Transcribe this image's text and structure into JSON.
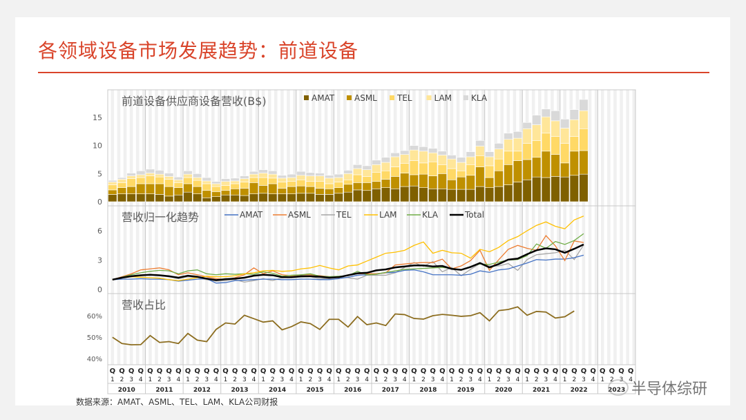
{
  "slide": {
    "title": "各领域设备市场发展趋势：前道设备",
    "source": "数据来源：AMAT、ASML、TEL、LAM、KLA公司财报",
    "watermark": "半导体综研"
  },
  "axis": {
    "quarter_prefix": "Q",
    "quarters": [
      "1",
      "2",
      "3",
      "4"
    ],
    "years": [
      "2010",
      "2011",
      "2012",
      "2013",
      "2014",
      "2015",
      "2016",
      "2017",
      "2018",
      "2019",
      "2020",
      "2021",
      "2022",
      "2023"
    ]
  },
  "chart_data": [
    {
      "type": "bar",
      "stacked": true,
      "title": "前道设备供应商设备营收(B$)",
      "ylim": [
        0,
        19
      ],
      "yticks": [
        "0",
        "5",
        "10",
        "15"
      ],
      "legend": "top",
      "x_range": "2010Q1-2023Q4",
      "series": [
        {
          "name": "AMAT",
          "color": "#7f6000",
          "values": [
            1.3,
            1.4,
            1.4,
            1.4,
            1.4,
            1.3,
            1.0,
            1.2,
            1.7,
            1.4,
            0.7,
            0.9,
            1.2,
            1.2,
            1.1,
            1.4,
            1.5,
            1.4,
            1.4,
            1.4,
            1.5,
            1.5,
            1.3,
            1.3,
            1.5,
            1.7,
            2.1,
            2.0,
            2.3,
            2.5,
            2.3,
            2.7,
            2.8,
            2.5,
            2.3,
            2.3,
            2.2,
            2.2,
            2.2,
            2.7,
            2.5,
            2.7,
            3.0,
            3.5,
            3.9,
            4.4,
            4.3,
            4.5,
            4.4,
            4.7,
            4.9
          ]
        },
        {
          "name": "ASML",
          "color": "#bf9000",
          "values": [
            0.8,
            1.1,
            1.3,
            1.8,
            1.8,
            1.9,
            1.7,
            1.3,
            1.5,
            1.3,
            1.3,
            0.9,
            0.8,
            1.1,
            1.3,
            2.0,
            1.4,
            1.8,
            1.0,
            1.3,
            1.3,
            1.2,
            1.1,
            1.0,
            1.0,
            1.4,
            1.3,
            1.4,
            1.3,
            1.5,
            2.2,
            2.4,
            2.0,
            2.4,
            2.3,
            2.7,
            1.7,
            2.2,
            2.5,
            3.5,
            1.8,
            2.8,
            3.6,
            3.8,
            3.6,
            3.5,
            4.7,
            3.9,
            2.5,
            4.3,
            4.2
          ]
        },
        {
          "name": "TEL",
          "color": "#ffd966",
          "values": [
            0.9,
            0.9,
            1.4,
            1.1,
            1.4,
            1.2,
            1.3,
            0.9,
            1.1,
            1.1,
            1.2,
            0.9,
            0.9,
            0.9,
            1.1,
            0.9,
            1.4,
            1.0,
            1.1,
            0.9,
            1.1,
            0.9,
            1.2,
            0.9,
            1.0,
            0.8,
            1.4,
            1.1,
            1.6,
            1.5,
            1.7,
            1.7,
            2.5,
            2.0,
            2.5,
            1.6,
            2.0,
            1.1,
            1.9,
            2.0,
            2.1,
            2.1,
            2.4,
            1.7,
            2.9,
            3.0,
            3.2,
            3.2,
            3.5,
            2.6,
            3.9
          ]
        },
        {
          "name": "LAM",
          "color": "#ffe699",
          "values": [
            0.5,
            0.6,
            0.5,
            0.5,
            0.5,
            0.5,
            0.5,
            0.5,
            0.6,
            0.5,
            0.5,
            0.5,
            0.7,
            0.5,
            0.6,
            0.6,
            0.8,
            0.7,
            0.7,
            0.7,
            0.8,
            1.0,
            1.0,
            1.0,
            0.8,
            1.1,
            1.1,
            1.2,
            1.4,
            1.5,
            1.8,
            1.6,
            1.9,
            2.1,
            1.6,
            1.7,
            1.7,
            1.5,
            1.4,
            1.7,
            1.6,
            1.8,
            2.1,
            2.3,
            2.6,
            2.8,
            2.9,
            2.8,
            2.7,
            3.0,
            3.2
          ]
        },
        {
          "name": "KLA",
          "color": "#d9d9d9",
          "values": [
            0.3,
            0.3,
            0.5,
            0.7,
            0.7,
            0.7,
            0.6,
            0.5,
            0.6,
            0.7,
            0.6,
            0.4,
            0.5,
            0.5,
            0.5,
            0.5,
            0.6,
            0.6,
            0.5,
            0.6,
            0.7,
            0.6,
            0.5,
            0.5,
            0.6,
            0.6,
            0.7,
            0.7,
            0.8,
            0.9,
            0.7,
            0.7,
            0.8,
            0.8,
            0.8,
            0.7,
            0.7,
            0.9,
            0.9,
            1.0,
            0.9,
            1.0,
            1.1,
            1.2,
            1.1,
            1.7,
            1.4,
            1.8,
            1.6,
            1.8,
            2.0
          ]
        }
      ]
    },
    {
      "type": "line",
      "title": "营收归一化趋势",
      "ylim": [
        0,
        8.6
      ],
      "yticks": [
        "0",
        "3",
        "6"
      ],
      "legend": "top",
      "series": [
        {
          "name": "AMAT",
          "color": "#4472c4",
          "values": [
            1.0,
            1.05,
            1.05,
            1.1,
            1.05,
            1.05,
            1.0,
            0.85,
            0.95,
            1.05,
            1.1,
            0.65,
            0.7,
            0.9,
            0.95,
            1.0,
            1.05,
            1.05,
            1.0,
            1.0,
            1.05,
            1.05,
            1.0,
            1.0,
            1.1,
            1.25,
            1.45,
            1.5,
            1.6,
            1.7,
            1.75,
            1.95,
            2.0,
            1.8,
            1.5,
            1.5,
            1.5,
            1.45,
            1.55,
            1.9,
            1.75,
            2.0,
            2.1,
            2.4,
            2.7,
            3.05,
            3.0,
            3.1,
            3.1,
            3.25,
            3.5
          ]
        },
        {
          "name": "ASML",
          "color": "#ed7d31",
          "values": [
            1.0,
            1.3,
            1.6,
            2.0,
            2.1,
            2.2,
            2.0,
            1.5,
            1.7,
            1.5,
            1.3,
            1.1,
            1.0,
            1.2,
            1.5,
            2.2,
            1.6,
            1.9,
            1.5,
            1.4,
            1.5,
            1.5,
            1.4,
            1.3,
            1.2,
            1.5,
            1.6,
            1.6,
            1.6,
            1.7,
            2.5,
            2.6,
            2.7,
            2.75,
            2.75,
            3.1,
            2.1,
            2.4,
            2.95,
            4.0,
            1.95,
            3.05,
            4.1,
            4.5,
            4.2,
            4.0,
            5.5,
            4.45,
            2.95,
            4.95,
            4.8
          ]
        },
        {
          "name": "TEL",
          "color": "#a5a5a5",
          "values": [
            1.0,
            1.2,
            1.35,
            1.4,
            1.5,
            1.4,
            1.3,
            1.1,
            1.3,
            1.2,
            1.0,
            0.85,
            0.9,
            1.0,
            0.75,
            0.9,
            1.1,
            0.9,
            1.2,
            1.2,
            1.25,
            1.3,
            1.1,
            1.1,
            1.25,
            1.2,
            1.05,
            1.45,
            1.45,
            1.45,
            1.7,
            2.25,
            2.75,
            2.35,
            2.85,
            1.8,
            2.25,
            1.4,
            2.05,
            2.65,
            2.4,
            2.4,
            2.65,
            1.95,
            3.05,
            3.55,
            3.65,
            3.75,
            4.0,
            3.05,
            4.55
          ]
        },
        {
          "name": "LAM",
          "color": "#ffc000",
          "values": [
            1.0,
            1.2,
            1.3,
            1.25,
            1.2,
            1.15,
            1.0,
            0.9,
            1.05,
            1.2,
            1.35,
            1.3,
            1.3,
            1.4,
            1.6,
            1.7,
            1.9,
            1.95,
            1.85,
            1.9,
            2.1,
            2.2,
            2.45,
            2.2,
            2.0,
            2.4,
            2.5,
            2.9,
            3.3,
            3.7,
            3.8,
            4.0,
            4.5,
            4.85,
            3.7,
            4.0,
            3.75,
            3.7,
            3.2,
            4.1,
            3.85,
            4.3,
            5.0,
            5.4,
            6.0,
            6.55,
            6.9,
            6.45,
            6.2,
            7.1,
            7.5
          ]
        },
        {
          "name": "KLA",
          "color": "#70ad47",
          "values": [
            1.0,
            1.25,
            1.5,
            1.7,
            1.85,
            1.95,
            1.9,
            1.6,
            1.9,
            2.0,
            1.6,
            1.5,
            1.6,
            1.55,
            1.6,
            1.55,
            1.8,
            1.65,
            1.35,
            1.45,
            1.5,
            1.6,
            1.35,
            1.3,
            1.35,
            1.4,
            1.85,
            1.5,
            1.55,
            1.75,
            1.9,
            2.05,
            2.1,
            2.15,
            2.2,
            2.25,
            2.15,
            2.0,
            2.35,
            2.6,
            2.55,
            2.8,
            3.0,
            3.05,
            3.45,
            4.65,
            4.2,
            4.9,
            4.6,
            5.0,
            5.7
          ]
        },
        {
          "name": "Total",
          "color": "#000000",
          "values": [
            1.0,
            1.2,
            1.35,
            1.45,
            1.5,
            1.45,
            1.35,
            1.2,
            1.4,
            1.3,
            1.1,
            0.95,
            1.05,
            1.1,
            1.2,
            1.4,
            1.5,
            1.45,
            1.25,
            1.25,
            1.35,
            1.35,
            1.3,
            1.2,
            1.25,
            1.45,
            1.65,
            1.7,
            1.95,
            2.05,
            2.25,
            2.35,
            2.45,
            2.45,
            2.35,
            2.4,
            2.1,
            2.0,
            2.3,
            2.7,
            2.25,
            2.6,
            3.05,
            3.15,
            3.6,
            4.0,
            4.2,
            4.1,
            3.75,
            4.15,
            4.6
          ]
        }
      ]
    },
    {
      "type": "line",
      "title": "营收占比",
      "ylim": [
        35,
        66
      ],
      "yticks": [
        "40%",
        "50%",
        "60%"
      ],
      "series": [
        {
          "color": "#8c6d1f",
          "values": [
            49.9,
            47,
            46.4,
            46.5,
            50.7,
            47.5,
            47.9,
            47,
            51.7,
            48.6,
            47.9,
            53.6,
            56.6,
            56.1,
            60.2,
            58.6,
            57,
            57.6,
            53.4,
            54.9,
            57.1,
            56.3,
            53.6,
            58.3,
            58.3,
            54.7,
            59.6,
            55.8,
            56.6,
            55.4,
            60.8,
            60.5,
            58.7,
            58.4,
            60,
            60.6,
            60.2,
            59.7,
            60,
            61.4,
            57.6,
            62.4,
            62.9,
            64.1,
            60.2,
            62,
            61.7,
            58.9,
            59.5,
            62.2
          ]
        }
      ]
    }
  ]
}
